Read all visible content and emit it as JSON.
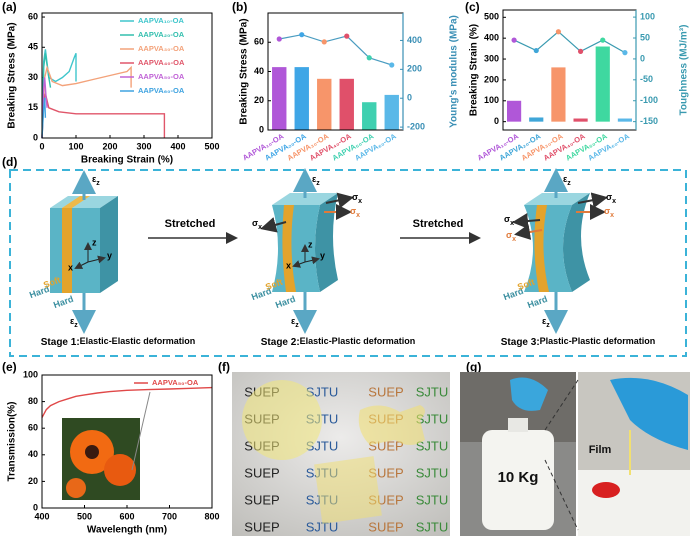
{
  "panel_labels": [
    "(a)",
    "(b)",
    "(c)",
    "(d)",
    "(e)",
    "(f)",
    "(g)"
  ],
  "chart_data": [
    {
      "type": "line",
      "xlabel": "Breaking Strain (%)",
      "ylabel": "Breaking Stress (MPa)",
      "xlim": [
        0,
        500
      ],
      "xticks": [
        0,
        100,
        200,
        300,
        400,
        500
      ],
      "ylim": [
        0,
        62
      ],
      "yticks": [
        0,
        15,
        30,
        45,
        60
      ],
      "legend": "upper right",
      "series": [
        {
          "name": "AAPVA₁₀-OA",
          "color": "#3fc6cc",
          "x": [
            0,
            5,
            10,
            20,
            40,
            60,
            80,
            95,
            100,
            100
          ],
          "values": [
            0,
            38,
            44,
            30,
            28,
            30,
            33,
            40,
            42,
            28
          ]
        },
        {
          "name": "AAPVA₂₀-OA",
          "color": "#33bfae",
          "x": [
            0,
            5,
            10,
            20,
            25
          ],
          "values": [
            0,
            35,
            42,
            30,
            25
          ]
        },
        {
          "name": "AAPVA₃₀-OA",
          "color": "#f3a27a",
          "x": [
            0,
            8,
            15,
            30,
            60,
            100,
            150,
            200,
            250,
            262,
            262
          ],
          "values": [
            0,
            30,
            35,
            28,
            26,
            27,
            29,
            31,
            33,
            35,
            25
          ]
        },
        {
          "name": "AAPVA₄₀-OA",
          "color": "#e0566a",
          "x": [
            0,
            5,
            10,
            20,
            50,
            100,
            200,
            300,
            360,
            360
          ],
          "values": [
            0,
            18,
            22,
            15,
            13,
            12,
            12,
            12,
            12,
            0
          ]
        },
        {
          "name": "AAPVA₅₀-OA",
          "color": "#c062d6",
          "x": [
            0,
            5,
            8,
            12,
            15
          ],
          "values": [
            0,
            25,
            30,
            20,
            15
          ]
        },
        {
          "name": "AAPVA₆₀-OA",
          "color": "#3fa3e0",
          "x": [
            0,
            5,
            8,
            10
          ],
          "values": [
            0,
            15,
            20,
            10
          ]
        }
      ]
    },
    {
      "type": "combo",
      "ylabel": "Breaking Stress (MPa)",
      "y2label": "Young's modulus (MPa)",
      "y2color": "#3a8fb5",
      "categories": [
        "AAPVA₁₀-OA",
        "AAPVA₂₀-OA",
        "AAPVA₃₀-OA",
        "AAPVA₄₀-OA",
        "AAPVA₅₀-OA",
        "AAPVA₆₀-OA"
      ],
      "ylim": [
        0,
        80
      ],
      "yticks": [
        0,
        20,
        40,
        60
      ],
      "y2lim": [
        -220,
        590
      ],
      "y2ticks": [
        -200,
        0,
        200,
        400
      ],
      "series": [
        {
          "colors": [
            "#b057d8",
            "#3fa6e6",
            "#f7956a",
            "#e0506a",
            "#3fd0b0",
            "#5ab8e8"
          ],
          "values": [
            43,
            43,
            35,
            35,
            19,
            24
          ]
        },
        {
          "color": "#4a9cc0",
          "axis": "y2",
          "values": [
            410,
            440,
            390,
            430,
            280,
            230
          ]
        }
      ]
    },
    {
      "type": "combo",
      "ylabel": "Breaking Strain (%)",
      "y2label": "Toughness (MJ/m³)",
      "y2color": "#3a9ab0",
      "categories": [
        "AAPVA₁₀-OA",
        "AAPVA₂₀-OA",
        "AAPVA₃₀-OA",
        "AAPVA₄₀-OA",
        "AAPVA₅₀-OA",
        "AAPVA₆₀-OA"
      ],
      "ylim": [
        -40,
        535
      ],
      "yticks": [
        0,
        100,
        200,
        300,
        400,
        500
      ],
      "y2lim": [
        -170,
        117
      ],
      "y2ticks": [
        -150,
        -100,
        -50,
        0,
        50,
        100
      ],
      "series": [
        {
          "colors": [
            "#b057d8",
            "#3fa6d8",
            "#f7956a",
            "#e0506a",
            "#3fd8a0",
            "#5ab8e8"
          ],
          "values": [
            100,
            20,
            260,
            15,
            360,
            15
          ]
        },
        {
          "color": "#3a9ab0",
          "axis": "y2",
          "values": [
            45,
            20,
            65,
            18,
            45,
            15
          ]
        }
      ]
    },
    {
      "type": "line",
      "xlabel": "Wavelength (nm)",
      "ylabel": "Transmission(%)",
      "xlim": [
        400,
        800
      ],
      "xticks": [
        400,
        500,
        600,
        700,
        800
      ],
      "ylim": [
        0,
        100
      ],
      "yticks": [
        0,
        20,
        40,
        60,
        80,
        100
      ],
      "legend": "upper right",
      "series": [
        {
          "name": "AAPVA₅₀-OA",
          "color": "#e04848",
          "x": [
            400,
            410,
            420,
            440,
            460,
            480,
            500,
            530,
            560,
            600,
            650,
            700,
            750,
            800
          ],
          "values": [
            68,
            74,
            77,
            80,
            82,
            84,
            85,
            86.5,
            87.5,
            88.5,
            89,
            89.5,
            90,
            90.5
          ]
        }
      ]
    }
  ],
  "diagram": {
    "strain": {
      "symbol": "ε",
      "sub": "z"
    },
    "stress": {
      "symbol": "σ",
      "sub": "x"
    },
    "axes": [
      "z",
      "x",
      "y"
    ],
    "layers": [
      "Hard",
      "Soft"
    ],
    "arrow_label": "Stretched",
    "stages": [
      {
        "prefix": "Stage 1:",
        "text": "Elastic-Elastic deformation"
      },
      {
        "prefix": "Stage 2:",
        "text": "Elastic-Plastic deformation"
      },
      {
        "prefix": "Stage 3:",
        "text": "Plastic-Plastic deformation"
      }
    ]
  },
  "photo_f": {
    "words": [
      "SUEP",
      "SJTU"
    ]
  },
  "photo_g": {
    "weight": "10 Kg",
    "film": "Film"
  }
}
